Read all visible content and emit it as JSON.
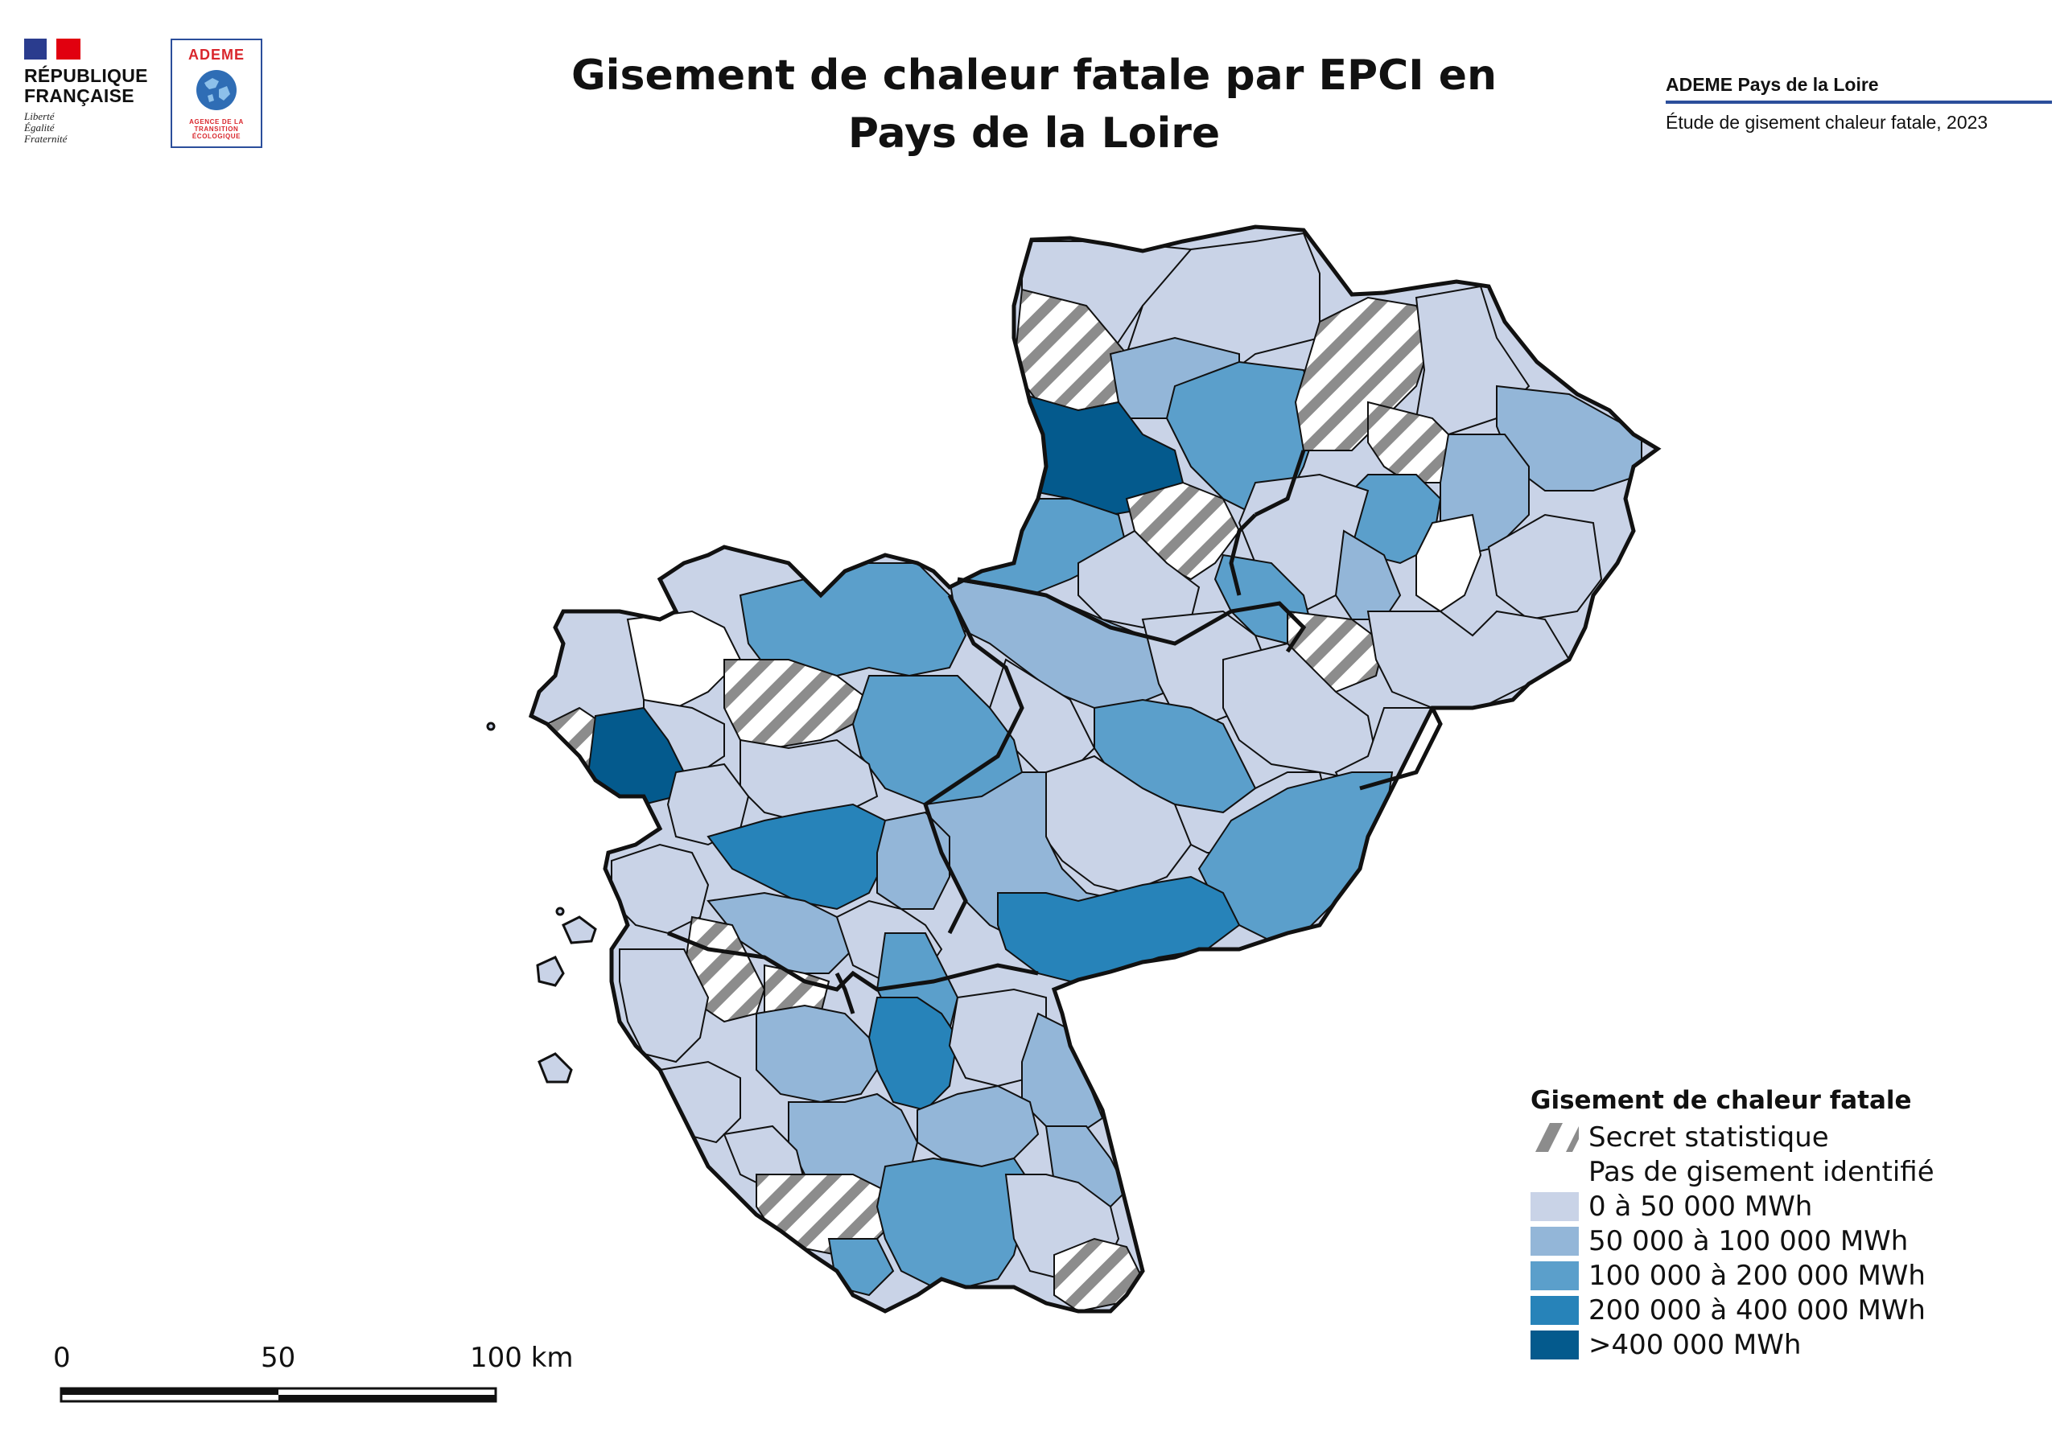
{
  "title": "Gisement de chaleur fatale par EPCI en Pays de la Loire",
  "logos": {
    "republique_lines": [
      "RÉPUBLIQUE",
      "FRANÇAISE"
    ],
    "motto_lines": [
      "Liberté",
      "Égalité",
      "Fraternité"
    ],
    "ademe_word": "ADEME",
    "ademe_subtitle_lines": [
      "AGENCE DE LA",
      "TRANSITION",
      "ÉCOLOGIQUE"
    ]
  },
  "source": {
    "organization": "ADEME Pays de la Loire",
    "study": "Étude de gisement chaleur fatale, 2023"
  },
  "legend": {
    "title": "Gisement de chaleur fatale",
    "items": [
      {
        "label": "Secret statistique",
        "pattern": "hatched",
        "color": "#8c8c8c"
      },
      {
        "label": "Pas de gisement identifié",
        "pattern": "none",
        "color": "#ffffff"
      },
      {
        "label": "0 à 50 000 MWh",
        "pattern": "solid",
        "color": "#c9d3e7"
      },
      {
        "label": "50 000 à 100 000 MWh",
        "pattern": "solid",
        "color": "#93b6d8"
      },
      {
        "label": "100 000 à 200 000 MWh",
        "pattern": "solid",
        "color": "#5b9fcb"
      },
      {
        "label": "200 000 à 400 000 MWh",
        "pattern": "solid",
        "color": "#2783b9"
      },
      {
        "label": ">400 000 MWh",
        "pattern": "solid",
        "color": "#045a8d"
      }
    ]
  },
  "scale_bar": {
    "ticks": [
      "0",
      "50",
      "100 km"
    ]
  },
  "colors": {
    "class_0": "#c9d3e7",
    "class_1": "#93b6d8",
    "class_2": "#5b9fcb",
    "class_3": "#2783b9",
    "class_4": "#045a8d",
    "none": "#ffffff",
    "hatch": "#8c8c8c",
    "outline": "#111111",
    "brand_blue": "#2b4e9b",
    "brand_red": "#d9262c"
  }
}
